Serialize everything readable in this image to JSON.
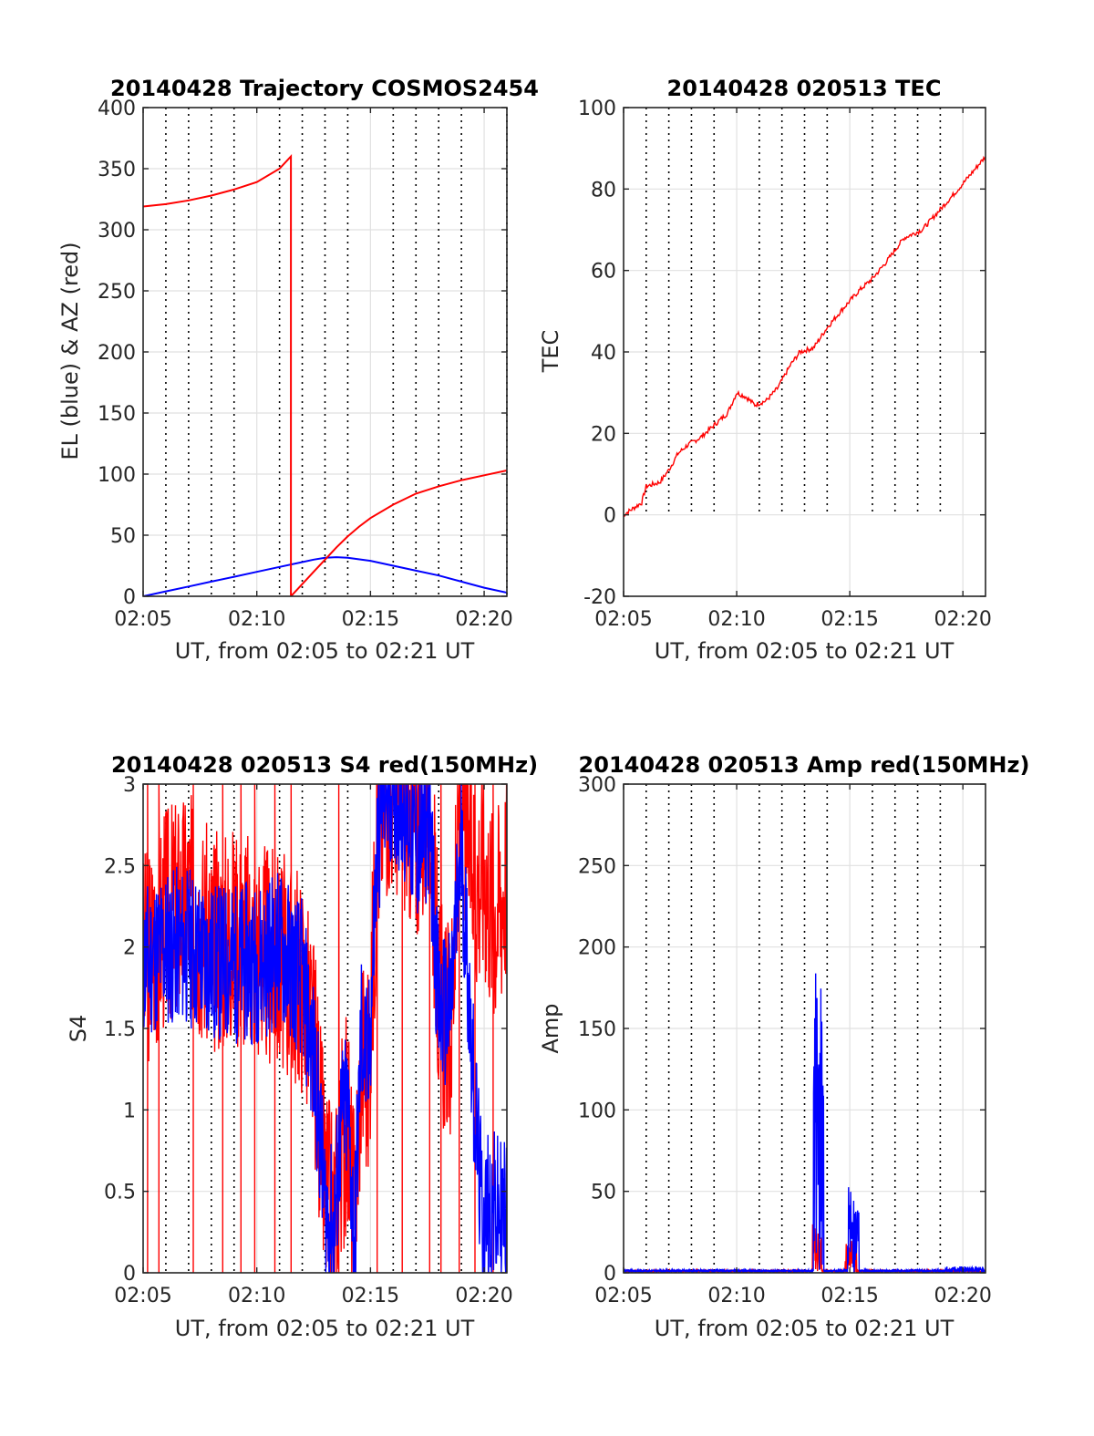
{
  "figure": {
    "background": "#ffffff"
  },
  "chart_data": [
    {
      "type": "line",
      "title": "20140428 Trajectory COSMOS2454",
      "xlabel": "UT, from 02:05 to 02:21 UT",
      "ylabel": "EL (blue) & AZ (red)",
      "xlim": [
        0,
        16
      ],
      "ylim": [
        0,
        400
      ],
      "yticks": [
        0,
        50,
        100,
        150,
        200,
        250,
        300,
        350,
        400
      ],
      "xticks": [
        0,
        5,
        10,
        15
      ],
      "xtick_labels": [
        "02:05",
        "02:10",
        "02:15",
        "02:20"
      ],
      "minor_x_dotted": [
        1,
        2,
        3,
        4,
        6,
        7,
        8,
        9,
        11,
        12,
        13,
        14,
        16
      ],
      "series": [
        {
          "color": "#0000ff",
          "kind": "smooth",
          "x": [
            0,
            1,
            2,
            3,
            4,
            5,
            6,
            7,
            7.5,
            8,
            8.5,
            9,
            10,
            11,
            12,
            13,
            14,
            15,
            16
          ],
          "y": [
            0,
            4,
            8,
            12,
            16,
            20,
            24,
            28,
            30,
            31.5,
            32,
            31.5,
            29,
            25,
            21,
            17,
            12,
            7,
            3
          ]
        },
        {
          "color": "#ff0000",
          "kind": "smooth",
          "x": [
            0,
            1,
            2,
            3,
            4,
            5,
            6,
            6.5,
            6.5,
            7,
            7.5,
            8,
            8.5,
            9,
            9.5,
            10,
            11,
            12,
            13,
            14,
            15,
            16
          ],
          "y": [
            319,
            321,
            324,
            328,
            333,
            339,
            350,
            360,
            0,
            10,
            20,
            30,
            40,
            49,
            57,
            64,
            75,
            84,
            90,
            95,
            99,
            103
          ]
        }
      ]
    },
    {
      "type": "line",
      "title": "20140428 020513 TEC",
      "xlabel": "UT, from 02:05 to 02:21 UT",
      "ylabel": "TEC",
      "xlim": [
        0,
        16
      ],
      "ylim": [
        -20,
        100
      ],
      "yticks": [
        -20,
        0,
        20,
        40,
        60,
        80,
        100
      ],
      "xticks": [
        0,
        5,
        10,
        15
      ],
      "xtick_labels": [
        "02:05",
        "02:10",
        "02:15",
        "02:20"
      ],
      "minor_x_dotted": [
        1,
        2,
        3,
        4,
        6,
        7,
        8,
        9,
        11,
        12,
        13,
        14
      ],
      "dotted_range": [
        0,
        100
      ],
      "series": [
        {
          "color": "#ff0000",
          "kind": "noisy",
          "amp": 0.6,
          "density": 400,
          "seed": 7,
          "x": [
            0,
            0.8,
            1.0,
            1.6,
            2.0,
            2.4,
            2.8,
            3.4,
            4.0,
            4.6,
            5.0,
            5.4,
            5.8,
            6.3,
            6.8,
            7.4,
            7.8,
            8.4,
            9.0,
            9.6,
            10.4,
            11.0,
            11.6,
            12.4,
            13.2,
            14.0,
            14.8,
            15.4,
            16.0
          ],
          "y": [
            0,
            3,
            7,
            8,
            11,
            15,
            17,
            19,
            22,
            25,
            30,
            29,
            27,
            28,
            31,
            37,
            40,
            41,
            46,
            50,
            55,
            58,
            62,
            68,
            70,
            75,
            80,
            84,
            88
          ]
        }
      ]
    },
    {
      "type": "line",
      "title": "20140428 020513 S4 red(150MHz)",
      "xlabel": "UT, from 02:05 to 02:21 UT",
      "ylabel": "S4",
      "xlim": [
        0,
        16
      ],
      "ylim": [
        0,
        3
      ],
      "yticks": [
        0,
        0.5,
        1,
        1.5,
        2,
        2.5,
        3
      ],
      "ytick_labels": [
        "0",
        "0.5",
        "1",
        "1.5",
        "2",
        "2.5",
        "3"
      ],
      "xticks": [
        0,
        5,
        10,
        15
      ],
      "xtick_labels": [
        "02:05",
        "02:10",
        "02:15",
        "02:20"
      ],
      "minor_x_dotted": [
        1,
        2,
        3,
        4,
        6,
        7,
        8,
        9,
        11,
        12,
        13,
        14
      ],
      "series": [
        {
          "color": "#ff0000",
          "kind": "noisy",
          "amp": 0.7,
          "density": 900,
          "seed": 3,
          "clip": true,
          "spikes_down": [
            0.2,
            0.7,
            2.2,
            3.5,
            4.3,
            4.9,
            5.8,
            6.5,
            8.6,
            10.3,
            11.4,
            12.6,
            13.1,
            13.9,
            14.6,
            15.4
          ],
          "x": [
            0,
            1,
            2,
            3,
            4,
            5,
            6,
            7,
            7.6,
            8.0,
            8.4,
            8.7,
            9.0,
            9.3,
            9.6,
            9.9,
            10.3,
            10.6,
            11.0,
            11.5,
            12.0,
            12.6,
            13.0,
            13.5,
            14.0,
            14.6,
            15.0,
            15.4,
            15.7,
            16.0
          ],
          "y": [
            1.9,
            2.2,
            2.3,
            2.0,
            2.1,
            2.0,
            1.9,
            1.8,
            1.3,
            0.5,
            0.3,
            0.8,
            0.9,
            0.3,
            1.4,
            1.2,
            2.6,
            3.0,
            3.0,
            2.9,
            2.7,
            2.9,
            1.7,
            1.4,
            3.0,
            2.4,
            2.5,
            2.2,
            2.3,
            2.5
          ]
        },
        {
          "color": "#0000ff",
          "kind": "noisy",
          "amp": 0.5,
          "density": 900,
          "seed": 11,
          "clip": true,
          "x": [
            0,
            1,
            2,
            3,
            4,
            5,
            6,
            7,
            7.6,
            8.0,
            8.4,
            8.7,
            9.0,
            9.3,
            9.6,
            9.9,
            10.3,
            10.6,
            11.0,
            11.5,
            12.0,
            12.6,
            13.0,
            13.5,
            14.0,
            14.6,
            14.9,
            15.2,
            15.6,
            16.0
          ],
          "y": [
            1.9,
            2.0,
            2.0,
            1.9,
            1.9,
            1.9,
            2.0,
            1.8,
            1.2,
            0.4,
            0.25,
            0.9,
            1.0,
            0.2,
            1.5,
            1.2,
            2.6,
            3.0,
            3.0,
            2.9,
            2.6,
            2.8,
            1.6,
            1.6,
            2.6,
            1.0,
            0.35,
            0.4,
            0.35,
            0.35
          ]
        }
      ]
    },
    {
      "type": "line",
      "title": "20140428 020513 Amp red(150MHz)",
      "xlabel": "UT, from 02:05 to 02:21 UT",
      "ylabel": "Amp",
      "xlim": [
        0,
        16
      ],
      "ylim": [
        0,
        300
      ],
      "yticks": [
        0,
        50,
        100,
        150,
        200,
        250,
        300
      ],
      "xticks": [
        0,
        5,
        10,
        15
      ],
      "xtick_labels": [
        "02:05",
        "02:10",
        "02:15",
        "02:20"
      ],
      "minor_x_dotted": [
        1,
        2,
        3,
        4,
        6,
        7,
        8,
        9,
        11,
        12,
        13,
        14
      ],
      "series": [
        {
          "color": "#ff0000",
          "kind": "bursts",
          "base": 1.0,
          "noise": 1.2,
          "seed": 5,
          "bursts": [
            [
              8.35,
              8.55,
              30
            ],
            [
              8.55,
              8.75,
              25
            ],
            [
              9.8,
              10.0,
              20
            ],
            [
              10.0,
              10.3,
              20
            ]
          ]
        },
        {
          "color": "#0000ff",
          "kind": "bursts",
          "base": 1.2,
          "noise": 1.5,
          "seed": 9,
          "bursts": [
            [
              8.4,
              8.55,
              205
            ],
            [
              8.55,
              8.7,
              215
            ],
            [
              8.7,
              8.85,
              180
            ],
            [
              9.9,
              10.1,
              55
            ],
            [
              10.1,
              10.4,
              45
            ],
            [
              14.2,
              15.9,
              4
            ]
          ]
        }
      ]
    }
  ]
}
